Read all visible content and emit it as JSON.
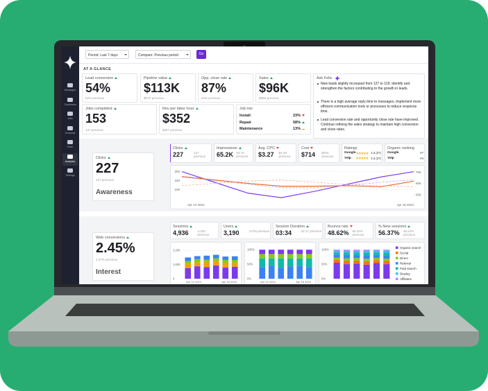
{
  "sidebar": [
    "Messages",
    "Customers",
    "Jobs",
    "Schedule",
    "Team",
    "Analytics",
    "Settings"
  ],
  "toolbar": {
    "period": "Period: Last 7 days",
    "compare": "Compare: Previous period",
    "go": "Go"
  },
  "section_title": "AT A GLANCE",
  "kpis": [
    {
      "label": "Lead conversion",
      "value": "54%",
      "previous": "52% previous",
      "trend": "up"
    },
    {
      "label": "Pipeline value",
      "value": "$113K",
      "previous": "$97K previous",
      "trend": "up"
    },
    {
      "label": "Opp. close rate",
      "value": "87%",
      "previous": "84% previous",
      "trend": "up"
    },
    {
      "label": "Sales",
      "value": "$96K",
      "previous": "$98K previous",
      "trend": "up"
    },
    {
      "label": "Jobs completed",
      "value": "153",
      "previous": "147 previous",
      "trend": "up"
    },
    {
      "label": "Rev per labor hour",
      "value": "$352",
      "previous": "$257 previous",
      "trend": "up"
    }
  ],
  "job_mix": {
    "title": "Job mix",
    "rows": [
      {
        "label": "Install",
        "value": "23%",
        "trend": "down"
      },
      {
        "label": "Repair",
        "value": "58%",
        "trend": "up"
      },
      {
        "label": "Maintenance",
        "value": "13%",
        "trend": "flat"
      }
    ]
  },
  "ask": {
    "title": "Ask Felix",
    "bullets": [
      "New leads slightly increased from 127 to 129. Identify and strengthen the factors contributing to the growth in leads.",
      "There is a high average reply time to messages. Implement more efficient communication tools or processes to reduce response time.",
      "Lead conversion rate and opportunity close rate have improved. Continue refining the sales strategy to maintain high conversion and close rates."
    ]
  },
  "awareness": {
    "card": {
      "label": "Clicks",
      "value": "227",
      "previous": "127 previous",
      "stage": "Awareness",
      "trend": "up"
    },
    "metrics": [
      {
        "label": "Clicks",
        "value": "227",
        "previous": "127 previous",
        "trend": "up"
      },
      {
        "label": "Impressions",
        "value": "65.2K",
        "previous": "54.7K previous",
        "trend": "up"
      },
      {
        "label": "Avg. CPC",
        "value": "$3.27",
        "previous": "$3.48 previous",
        "trend": "down"
      },
      {
        "label": "Cost",
        "value": "$714",
        "previous": "$834 previous",
        "trend": "down"
      }
    ],
    "ratings": {
      "title": "Ratings",
      "rows": [
        {
          "label": "Google",
          "value": "4.3 (37)"
        },
        {
          "label": "Yelp",
          "value": "4.3 (37)"
        }
      ]
    },
    "ranking": {
      "title": "Organic ranking",
      "rows": [
        {
          "label": "Google",
          "value": "#7"
        },
        {
          "label": "Yelp",
          "value": "#4"
        }
      ]
    },
    "chart": {
      "type": "line",
      "x_labels": [
        "Apr 12 2024",
        "Apr 18 2024"
      ],
      "ylim": [
        40,
        210
      ],
      "yticks": [
        200,
        150,
        100
      ],
      "y2lim": [
        45000,
        72000
      ],
      "y2ticks": [
        {
          "value": 70000,
          "label": "70K"
        },
        {
          "value": 60000,
          "label": "60K"
        },
        {
          "value": 50000,
          "label": "50K"
        }
      ],
      "series": [
        {
          "color": "#7c3aed",
          "values": [
            200,
            140,
            80,
            55,
            90,
            130,
            170,
            200
          ]
        },
        {
          "color": "#e8692b",
          "axis": "y2",
          "values": [
            66000,
            63000,
            60000,
            57500,
            57500,
            58000,
            57000,
            62000
          ]
        },
        {
          "color": "#b99af0",
          "dashed": true,
          "values": [
            170,
            150,
            130,
            110,
            110,
            125,
            140,
            155
          ]
        },
        {
          "color": "#f0a985",
          "dashed": true,
          "axis": "y2",
          "values": [
            58000,
            60000,
            62000,
            63000,
            61000,
            59000,
            58000,
            57000
          ]
        }
      ]
    }
  },
  "interest": {
    "card": {
      "label": "Web conversions",
      "value": "2.45%",
      "previous": "2.37% previous",
      "stage": "Interest",
      "trend": "up"
    },
    "metrics": [
      {
        "label": "Sessions",
        "value": "4,936",
        "previous": "4,340 previous",
        "trend": "up"
      },
      {
        "label": "Users",
        "value": "3,190",
        "previous": "3,078 previous",
        "trend": "up"
      },
      {
        "label": "Session Duration",
        "value": "03:34",
        "previous": "02:17 previous",
        "trend": "up"
      },
      {
        "label": "Bounce rate",
        "value": "48.62%",
        "previous": "56.34% previous",
        "trend": "down"
      },
      {
        "label": "% New sessions",
        "value": "56.37%",
        "previous": "46.54% previous",
        "trend": "up"
      }
    ],
    "charts": [
      {
        "type": "stacked-bar",
        "x_labels": [
          "Apr 12 2024",
          "Apr 18 2024"
        ],
        "ylim": [
          0,
          3600
        ],
        "yticks": [
          {
            "value": 3200,
            "label": "3,200"
          },
          {
            "value": 1600,
            "label": "1,600"
          },
          0
        ],
        "series": [
          {
            "color": "#7c3aed",
            "values": [
              1200,
              1400,
              1300,
              1500,
              1250,
              1350
            ]
          },
          {
            "color": "#f59e0b",
            "values": [
              500,
              450,
              600,
              500,
              550,
              480
            ]
          },
          {
            "color": "#84cc16",
            "values": [
              300,
              350,
              250,
              300,
              320,
              280
            ]
          },
          {
            "color": "#3b82f6",
            "values": [
              400,
              350,
              450,
              400,
              380,
              420
            ]
          }
        ]
      },
      {
        "type": "stacked-bar",
        "x_labels": [
          "Apr 12 2024",
          "Apr 18 2024"
        ],
        "ylim": [
          0,
          110
        ],
        "yticks": [
          {
            "value": 100,
            "label": "100%"
          },
          {
            "value": 50,
            "label": "50%"
          },
          {
            "value": 0,
            "label": "0%"
          }
        ],
        "series": [
          {
            "color": "#3b82f6",
            "values": [
              40,
              45,
              38,
              42,
              44,
              40
            ]
          },
          {
            "color": "#14b8a6",
            "values": [
              30,
              25,
              32,
              28,
              26,
              30
            ]
          },
          {
            "color": "#84cc16",
            "values": [
              15,
              15,
              15,
              15,
              15,
              15
            ]
          },
          {
            "color": "#7c3aed",
            "values": [
              15,
              15,
              15,
              15,
              15,
              15
            ]
          }
        ]
      },
      {
        "type": "stacked-bar",
        "ylim": [
          0,
          110
        ],
        "yticks": [
          {
            "value": 100,
            "label": "100%"
          },
          {
            "value": 50,
            "label": "50%"
          },
          {
            "value": 0,
            "label": "0%"
          }
        ],
        "series": [
          {
            "name": "Organic search",
            "color": "#7c3aed",
            "values": [
              55,
              50,
              52,
              48,
              54,
              50
            ]
          },
          {
            "name": "Social",
            "color": "#f97316",
            "values": [
              10,
              12,
              10,
              12,
              10,
              11
            ]
          },
          {
            "name": "Direct",
            "color": "#84cc16",
            "values": [
              8,
              8,
              9,
              9,
              8,
              8
            ]
          },
          {
            "name": "Referral",
            "color": "#3b82f6",
            "values": [
              10,
              12,
              11,
              12,
              10,
              12
            ]
          },
          {
            "name": "Paid search",
            "color": "#14b8a6",
            "values": [
              7,
              8,
              8,
              9,
              8,
              9
            ]
          },
          {
            "name": "Display",
            "color": "#38bdf8",
            "values": [
              6,
              6,
              6,
              6,
              6,
              6
            ]
          },
          {
            "name": "Affiliates",
            "color": "#a78bfa",
            "values": [
              4,
              4,
              4,
              4,
              4,
              4
            ]
          }
        ]
      }
    ]
  }
}
